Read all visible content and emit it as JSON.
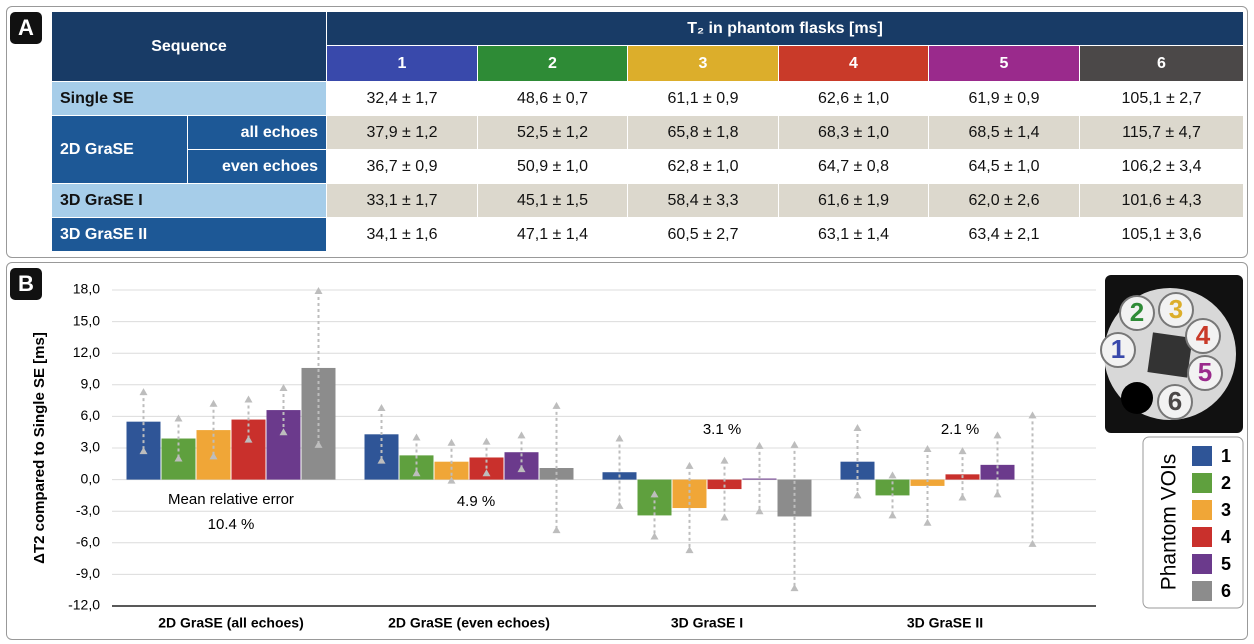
{
  "panel_labels": [
    "A",
    "B"
  ],
  "table": {
    "header": {
      "sequence": "Sequence",
      "title": "T₂ in phantom flasks [ms]",
      "columns": [
        {
          "label": "1",
          "color": "#3949ab"
        },
        {
          "label": "2",
          "color": "#2e8b36"
        },
        {
          "label": "3",
          "color": "#dcae2b"
        },
        {
          "label": "4",
          "color": "#c93a29"
        },
        {
          "label": "5",
          "color": "#9a2a8c"
        },
        {
          "label": "6",
          "color": "#4b4848"
        }
      ]
    },
    "rows": [
      {
        "label": "Single SE",
        "cells": [
          "32,4 ± 1,7",
          "48,6 ± 0,7",
          "61,1 ± 0,9",
          "62,6 ± 1,0",
          "61,9 ± 0,9",
          "105,1 ± 2,7"
        ]
      },
      {
        "label": "2D GraSE",
        "subrows": [
          {
            "label": "all echoes",
            "cells": [
              "37,9 ± 1,2",
              "52,5 ± 1,2",
              "65,8 ± 1,8",
              "68,3 ± 1,0",
              "68,5 ± 1,4",
              "115,7 ± 4,7"
            ]
          },
          {
            "label": "even echoes",
            "cells": [
              "36,7 ± 0,9",
              "50,9 ± 1,0",
              "62,8 ± 1,0",
              "64,7 ± 0,8",
              "64,5 ± 1,0",
              "106,2 ± 3,4"
            ]
          }
        ]
      },
      {
        "label": "3D GraSE I",
        "cells": [
          "33,1 ± 1,7",
          "45,1 ± 1,5",
          "58,4 ± 3,3",
          "61,6 ± 1,9",
          "62,0 ± 2,6",
          "101,6 ± 4,3"
        ]
      },
      {
        "label": "3D GraSE II",
        "cells": [
          "34,1 ± 1,6",
          "47,1 ± 1,4",
          "60,5 ± 2,7",
          "63,1 ± 1,4",
          "63,4 ± 2,1",
          "105,1 ± 3,6"
        ]
      }
    ]
  },
  "chart_data": {
    "type": "bar",
    "y_label": "ΔT2 compared to Single SE [ms]",
    "categories": [
      "2D GraSE (all echoes)",
      "2D GraSE (even echoes)",
      "3D GraSE I",
      "3D GraSE II"
    ],
    "series": [
      {
        "name": "1",
        "color": "#2f5597",
        "values": [
          5.5,
          4.3,
          0.7,
          1.7
        ],
        "errors": [
          2.8,
          2.5,
          3.2,
          3.2
        ]
      },
      {
        "name": "2",
        "color": "#5fa03e",
        "values": [
          3.9,
          2.3,
          -3.4,
          -1.5
        ],
        "errors": [
          1.9,
          1.7,
          2.0,
          1.9
        ]
      },
      {
        "name": "3",
        "color": "#f0a637",
        "values": [
          4.7,
          1.7,
          -2.7,
          -0.6
        ],
        "errors": [
          2.5,
          1.8,
          4.0,
          3.5
        ]
      },
      {
        "name": "4",
        "color": "#c9302c",
        "values": [
          5.7,
          2.1,
          -0.9,
          0.5
        ],
        "errors": [
          1.9,
          1.5,
          2.7,
          2.2
        ]
      },
      {
        "name": "5",
        "color": "#6b3a8c",
        "values": [
          6.6,
          2.6,
          0.1,
          1.4
        ],
        "errors": [
          2.1,
          1.6,
          3.1,
          2.8
        ]
      },
      {
        "name": "6",
        "color": "#8c8c8c",
        "values": [
          10.6,
          1.1,
          -3.5,
          0.0
        ],
        "errors": [
          7.3,
          5.9,
          6.8,
          6.1
        ]
      }
    ],
    "ylim": [
      -12,
      18
    ],
    "yticks": [
      {
        "value": -12,
        "label": "-12,0"
      },
      {
        "value": -9,
        "label": "-9,0"
      },
      {
        "value": -6,
        "label": "-6,0"
      },
      {
        "value": -3,
        "label": "-3,0"
      },
      {
        "value": 0,
        "label": "0,0"
      },
      {
        "value": 3,
        "label": "3,0"
      },
      {
        "value": 6,
        "label": "6,0"
      },
      {
        "value": 9,
        "label": "9,0"
      },
      {
        "value": 12,
        "label": "12,0"
      },
      {
        "value": 15,
        "label": "15,0"
      },
      {
        "value": 18,
        "label": "18,0"
      }
    ],
    "grid": true,
    "annotations": [
      [
        "Mean relative error",
        "10.4 %"
      ],
      [
        "4.9 %"
      ],
      [
        "3.1 %"
      ],
      [
        "2.1 %"
      ]
    ],
    "legend_title": "Phantom VOIs",
    "phantom_image": {
      "labels": [
        "1",
        "2",
        "3",
        "4",
        "5",
        "6"
      ]
    }
  }
}
